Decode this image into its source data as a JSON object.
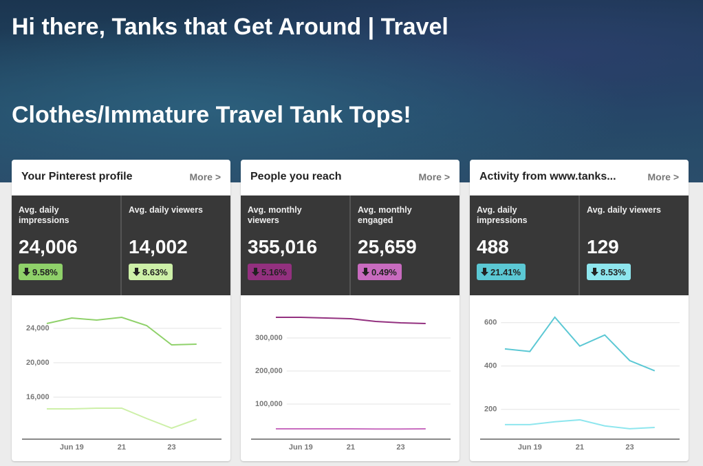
{
  "header": {
    "greeting": "Hi there, Tanks that Get Around | Travel",
    "board": "Clothes/Immature Travel Tank Tops!"
  },
  "cards": [
    {
      "title": "Your Pinterest profile",
      "more": "More >",
      "stats": [
        {
          "label": "Avg. daily impressions",
          "value": "24,006",
          "change": "9.58%",
          "color": "#8fd16a"
        },
        {
          "label": "Avg. daily viewers",
          "value": "14,002",
          "change": "8.63%",
          "color": "#cdf0a8"
        }
      ]
    },
    {
      "title": "People you reach",
      "more": "More >",
      "stats": [
        {
          "label": "Avg. monthly viewers",
          "value": "355,016",
          "change": "5.16%",
          "color": "#93307f"
        },
        {
          "label": "Avg. monthly engaged",
          "value": "25,659",
          "change": "0.49%",
          "color": "#c86bbf"
        }
      ]
    },
    {
      "title": "Activity from www.tanks...",
      "more": "More >",
      "stats": [
        {
          "label": "Avg. daily impressions",
          "value": "488",
          "change": "21.41%",
          "color": "#5bc8d4"
        },
        {
          "label": "Avg. daily viewers",
          "value": "129",
          "change": "8.53%",
          "color": "#8ee6ee"
        }
      ]
    }
  ],
  "chart_data": [
    {
      "type": "line",
      "categories": [
        null,
        "Jun 19",
        null,
        "21",
        null,
        "23",
        null
      ],
      "series": [
        {
          "color": "#8fd16a",
          "values": [
            24560,
            25200,
            24960,
            25280,
            24320,
            22080,
            22160
          ]
        },
        {
          "color": "#cdf0a8",
          "values": [
            14640,
            14640,
            14720,
            14720,
            13520,
            12400,
            13440
          ]
        }
      ],
      "ylim": [
        11120,
        26000
      ],
      "yticks": [
        {
          "value": 16000,
          "label": "16,000"
        },
        {
          "value": 20000,
          "label": "20,000"
        },
        {
          "value": 24000,
          "label": "24,000"
        }
      ],
      "grid": true
    },
    {
      "type": "line",
      "categories": [
        null,
        "Jun 19",
        null,
        "21",
        null,
        "23",
        null
      ],
      "series": [
        {
          "color": "#93307f",
          "values": [
            362500,
            362500,
            360400,
            358300,
            350000,
            345800,
            343700
          ]
        },
        {
          "color": "#c86bbf",
          "values": [
            25000,
            25000,
            25000,
            25000,
            24500,
            24500,
            25000
          ]
        }
      ],
      "ylim": [
        -6250,
        381250
      ],
      "yticks": [
        {
          "value": 100000,
          "label": "100,000"
        },
        {
          "value": 200000,
          "label": "200,000"
        },
        {
          "value": 300000,
          "label": "300,000"
        }
      ],
      "grid": true
    },
    {
      "type": "line",
      "categories": [
        null,
        "Jun 19",
        null,
        "21",
        null,
        "23",
        null
      ],
      "series": [
        {
          "color": "#5bc8d4",
          "values": [
            479,
            467,
            625,
            492,
            543,
            425,
            378
          ]
        },
        {
          "color": "#8ee6ee",
          "values": [
            130,
            130,
            143,
            152,
            124,
            111,
            117
          ]
        }
      ],
      "ylim": [
        63,
        653
      ],
      "yticks": [
        200,
        400,
        600
      ],
      "grid": true
    }
  ]
}
